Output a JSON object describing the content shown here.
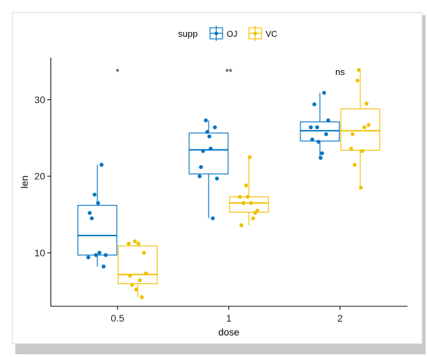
{
  "chart_data": {
    "type": "boxplot",
    "xlabel": "dose",
    "ylabel": "len",
    "ylim": [
      3,
      35.5
    ],
    "yticks": [
      10,
      20,
      30
    ],
    "categories": [
      "0.5",
      "1",
      "2"
    ],
    "legend": {
      "title": "supp",
      "position": "top",
      "entries": [
        {
          "name": "OJ",
          "color": "#0073C2"
        },
        {
          "name": "VC",
          "color": "#EFC000"
        }
      ]
    },
    "significance": [
      "*",
      "**",
      "ns"
    ],
    "series": [
      {
        "name": "OJ",
        "color": "#0073C2",
        "boxes": [
          {
            "category": "0.5",
            "min": 8.2,
            "q1": 9.7,
            "median": 12.25,
            "q3": 16.2,
            "max": 21.5
          },
          {
            "category": "1",
            "min": 14.5,
            "q1": 20.3,
            "median": 23.45,
            "q3": 25.65,
            "max": 27.3
          },
          {
            "category": "2",
            "min": 22.4,
            "q1": 24.6,
            "median": 25.95,
            "q3": 27.1,
            "max": 30.9
          }
        ],
        "points": [
          [
            15.2,
            21.5,
            17.6,
            9.7,
            14.5,
            10.0,
            8.2,
            9.4,
            16.5,
            9.7
          ],
          [
            19.7,
            23.3,
            23.6,
            26.4,
            20.0,
            25.2,
            25.8,
            21.2,
            14.5,
            27.3
          ],
          [
            25.5,
            26.4,
            22.4,
            24.5,
            24.8,
            30.9,
            26.4,
            27.3,
            29.4,
            23.0
          ]
        ]
      },
      {
        "name": "VC",
        "color": "#EFC000",
        "boxes": [
          {
            "category": "0.5",
            "min": 4.2,
            "q1": 5.95,
            "median": 7.15,
            "q3": 10.9,
            "max": 11.5
          },
          {
            "category": "1",
            "min": 13.6,
            "q1": 15.3,
            "median": 16.5,
            "q3": 17.3,
            "max": 22.5
          },
          {
            "category": "2",
            "min": 18.5,
            "q1": 23.4,
            "median": 25.95,
            "q3": 28.8,
            "max": 33.9
          }
        ],
        "points": [
          [
            4.2,
            11.5,
            7.3,
            5.8,
            6.4,
            10.0,
            11.2,
            11.2,
            5.2,
            7.0
          ],
          [
            16.5,
            16.5,
            15.2,
            17.3,
            22.5,
            17.3,
            13.6,
            14.5,
            18.8,
            15.5
          ],
          [
            23.6,
            18.5,
            33.9,
            25.5,
            26.4,
            32.5,
            26.7,
            21.5,
            23.3,
            29.5
          ]
        ]
      }
    ]
  }
}
